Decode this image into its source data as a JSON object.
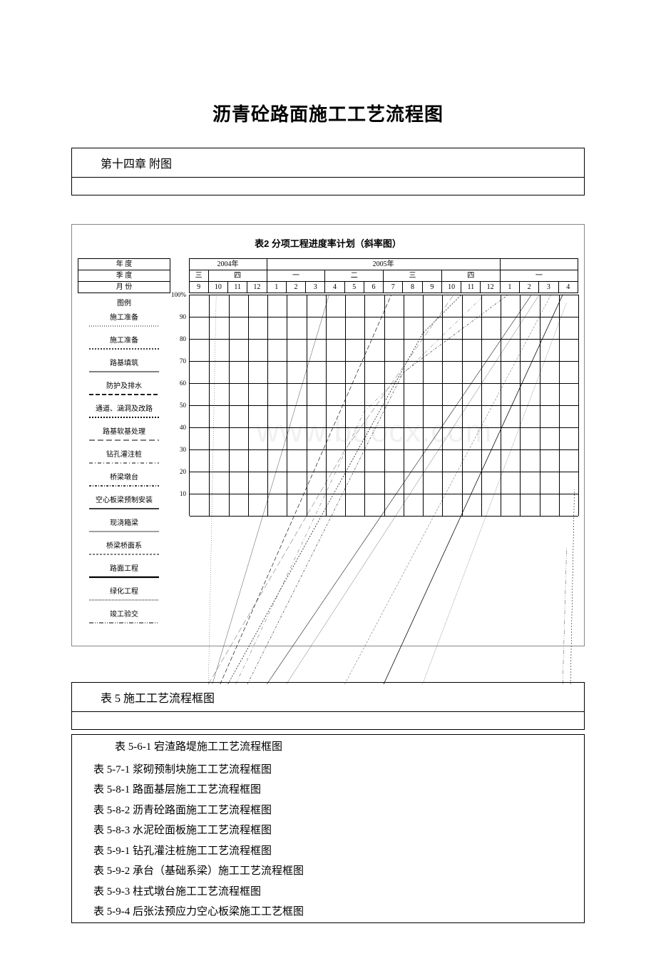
{
  "title": "沥青砼路面施工工艺流程图",
  "chapter_box_text": "第十四章 附图",
  "chart": {
    "title": "表2 分项工程进度率计划（斜率图）",
    "header_rows": {
      "row_labels": [
        "年        度",
        "季        度",
        "月        份"
      ],
      "years": [
        "2004年",
        "2005年",
        ""
      ],
      "quarters_2004": [
        "三",
        "四"
      ],
      "quarters_2005": [
        "一",
        "二",
        "三",
        "四"
      ],
      "quarters_2006": [
        "一"
      ],
      "months": [
        "9",
        "10",
        "11",
        "12",
        "1",
        "2",
        "3",
        "4",
        "5",
        "6",
        "7",
        "8",
        "9",
        "10",
        "11",
        "12",
        "1",
        "2",
        "3",
        "4"
      ]
    },
    "legend_header": "图例",
    "legend_items": [
      {
        "label": "施工准备",
        "dash": "1,2",
        "width": 1
      },
      {
        "label": "施工准备",
        "dash": "2,2",
        "width": 1.5
      },
      {
        "label": "路基填筑",
        "dash": "",
        "width": 1
      },
      {
        "label": "防护及排水",
        "dash": "6,3",
        "width": 1.8
      },
      {
        "label": "通道、涵洞及改路",
        "dash": "2,2",
        "width": 2
      },
      {
        "label": "路基软基处理",
        "dash": "8,4",
        "width": 1
      },
      {
        "label": "钻孔灌注桩",
        "dash": "5,3,1,3",
        "width": 1
      },
      {
        "label": "桥梁墩台",
        "dash": "3,2,1,2",
        "width": 1.5
      },
      {
        "label": "空心板梁预制安装",
        "dash": "",
        "width": 1.5
      },
      {
        "label": "现浇箱梁",
        "dash": "",
        "width": 0.8
      },
      {
        "label": "桥梁桥面系",
        "dash": "3,2",
        "width": 1
      },
      {
        "label": "路面工程",
        "dash": "",
        "width": 2.2
      },
      {
        "label": "绿化工程",
        "dash": "1,1",
        "width": 1
      },
      {
        "label": "竣工验交",
        "dash": "6,2,1,2,1,2",
        "width": 1
      }
    ],
    "y_ticks": [
      "100%",
      "90",
      "80",
      "70",
      "60",
      "50",
      "40",
      "30",
      "20",
      "10"
    ],
    "y_range": [
      0,
      100
    ],
    "grid_color": "#000000",
    "background_color": "#ffffff",
    "series": [
      {
        "dash": "1,2",
        "w": 1,
        "pts": [
          [
            0.05,
            0
          ],
          [
            0.07,
            100
          ]
        ]
      },
      {
        "dash": "",
        "w": 1,
        "pts": [
          [
            0.06,
            0
          ],
          [
            0.36,
            100
          ]
        ]
      },
      {
        "dash": "6,3",
        "w": 1.8,
        "pts": [
          [
            0.08,
            0
          ],
          [
            0.52,
            100
          ]
        ]
      },
      {
        "dash": "2,2",
        "w": 2,
        "pts": [
          [
            0.1,
            0
          ],
          [
            0.6,
            90
          ],
          [
            0.7,
            100
          ]
        ]
      },
      {
        "dash": "8,4",
        "w": 1,
        "pts": [
          [
            0.05,
            0
          ],
          [
            0.4,
            60
          ],
          [
            0.68,
            100
          ]
        ]
      },
      {
        "dash": "5,3,1,3",
        "w": 1,
        "pts": [
          [
            0.12,
            0
          ],
          [
            0.45,
            70
          ],
          [
            0.76,
            100
          ]
        ]
      },
      {
        "dash": "3,2,1,2",
        "w": 1.5,
        "pts": [
          [
            0.15,
            0
          ],
          [
            0.55,
            80
          ],
          [
            0.82,
            100
          ]
        ]
      },
      {
        "dash": "",
        "w": 1.5,
        "pts": [
          [
            0.2,
            0
          ],
          [
            0.88,
            100
          ]
        ]
      },
      {
        "dash": "",
        "w": 0.8,
        "pts": [
          [
            0.25,
            0
          ],
          [
            0.9,
            100
          ]
        ]
      },
      {
        "dash": "3,2",
        "w": 1,
        "pts": [
          [
            0.4,
            0
          ],
          [
            0.93,
            100
          ]
        ]
      },
      {
        "dash": "",
        "w": 2.2,
        "pts": [
          [
            0.5,
            0
          ],
          [
            0.96,
            100
          ]
        ]
      },
      {
        "dash": "1,1",
        "w": 1,
        "pts": [
          [
            0.6,
            0
          ],
          [
            0.97,
            98
          ]
        ]
      },
      {
        "dash": "6,2,1,2,1,2",
        "w": 1,
        "pts": [
          [
            0.96,
            0
          ],
          [
            0.97,
            35
          ]
        ]
      },
      {
        "dash": "2,2",
        "w": 1.5,
        "pts": [
          [
            0.98,
            0
          ],
          [
            0.99,
            50
          ]
        ]
      }
    ],
    "watermark": "www.bdocx.com"
  },
  "table5_box_text": "表 5  施工工艺流程框图",
  "toc": [
    "表 5-6-1  宕渣路堤施工工艺流程框图",
    "表 5-7-1  浆砌预制块施工工艺流程框图",
    "表 5-8-1  路面基层施工工艺流程框图",
    "表 5-8-2  沥青砼路面施工工艺流程框图",
    "表 5-8-3  水泥砼面板施工工艺流程框图",
    "表 5-9-1  钻孔灌注桩施工工艺流程框图",
    "表 5-9-2  承台（基础系梁）施工工艺流程框图",
    "表 5-9-3  柱式墩台施工工艺流程框图",
    "表 5-9-4  后张法预应力空心板梁施工工艺框图"
  ]
}
